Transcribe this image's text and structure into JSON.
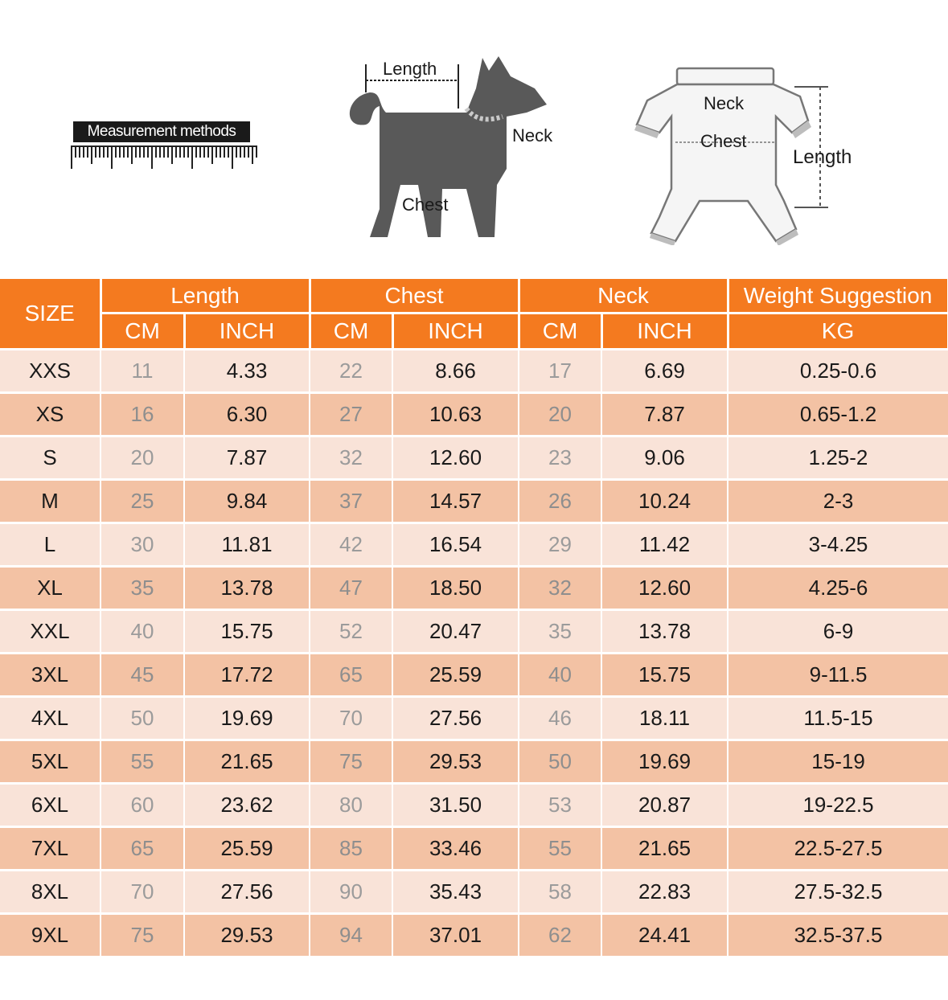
{
  "diagram": {
    "ruler_label": "Measurement methods",
    "dog_labels": {
      "length": "Length",
      "neck": "Neck",
      "chest": "Chest"
    },
    "suit_labels": {
      "neck": "Neck",
      "chest": "Chest",
      "length": "Length"
    }
  },
  "colors": {
    "header": "#f47a1f",
    "row_light": "#f9e3d8",
    "row_dark": "#f3c2a4"
  },
  "table": {
    "size_header": "SIZE",
    "groups": [
      "Length",
      "Chest",
      "Neck",
      "Weight Suggestion"
    ],
    "units": [
      "CM",
      "INCH",
      "CM",
      "INCH",
      "CM",
      "INCH",
      "KG"
    ],
    "rows": [
      [
        "XXS",
        "11",
        "4.33",
        "22",
        "8.66",
        "17",
        "6.69",
        "0.25-0.6"
      ],
      [
        "XS",
        "16",
        "6.30",
        "27",
        "10.63",
        "20",
        "7.87",
        "0.65-1.2"
      ],
      [
        "S",
        "20",
        "7.87",
        "32",
        "12.60",
        "23",
        "9.06",
        "1.25-2"
      ],
      [
        "M",
        "25",
        "9.84",
        "37",
        "14.57",
        "26",
        "10.24",
        "2-3"
      ],
      [
        "L",
        "30",
        "11.81",
        "42",
        "16.54",
        "29",
        "11.42",
        "3-4.25"
      ],
      [
        "XL",
        "35",
        "13.78",
        "47",
        "18.50",
        "32",
        "12.60",
        "4.25-6"
      ],
      [
        "XXL",
        "40",
        "15.75",
        "52",
        "20.47",
        "35",
        "13.78",
        "6-9"
      ],
      [
        "3XL",
        "45",
        "17.72",
        "65",
        "25.59",
        "40",
        "15.75",
        "9-11.5"
      ],
      [
        "4XL",
        "50",
        "19.69",
        "70",
        "27.56",
        "46",
        "18.11",
        "11.5-15"
      ],
      [
        "5XL",
        "55",
        "21.65",
        "75",
        "29.53",
        "50",
        "19.69",
        "15-19"
      ],
      [
        "6XL",
        "60",
        "23.62",
        "80",
        "31.50",
        "53",
        "20.87",
        "19-22.5"
      ],
      [
        "7XL",
        "65",
        "25.59",
        "85",
        "33.46",
        "55",
        "21.65",
        "22.5-27.5"
      ],
      [
        "8XL",
        "70",
        "27.56",
        "90",
        "35.43",
        "58",
        "22.83",
        "27.5-32.5"
      ],
      [
        "9XL",
        "75",
        "29.53",
        "94",
        "37.01",
        "62",
        "24.41",
        "32.5-37.5"
      ]
    ]
  }
}
